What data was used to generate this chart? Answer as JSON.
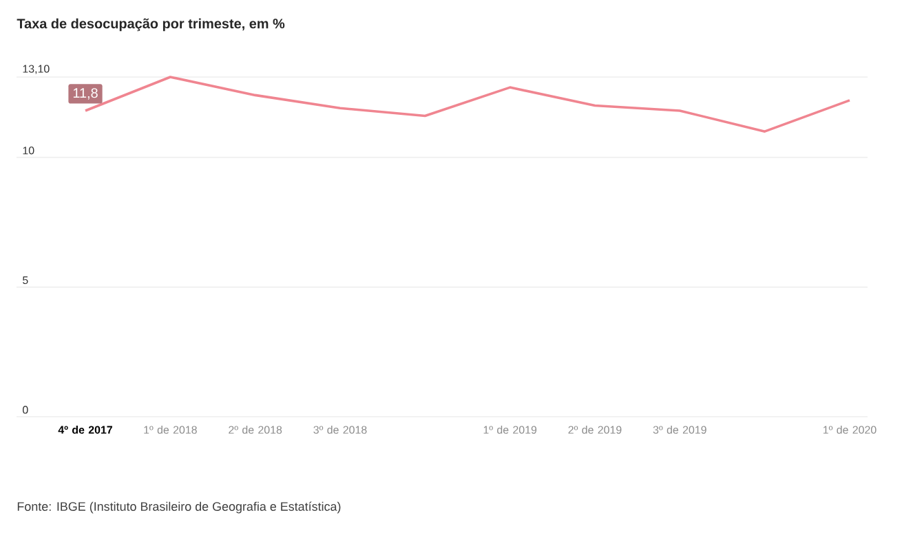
{
  "chart_data": {
    "type": "line",
    "title": "Taxa de desocupação por trimeste, em %",
    "categories": [
      "4º de 2017",
      "1º de 2018",
      "2º de 2018",
      "3º de 2018",
      null,
      "1º de 2019",
      "2º de 2019",
      "3º de 2019",
      null,
      "1º de 2020"
    ],
    "series": [
      {
        "color": "#f08590",
        "values": [
          11.8,
          13.1,
          12.4,
          11.9,
          11.6,
          12.7,
          12.0,
          11.8,
          11.0,
          12.2
        ],
        "value_labels": [
          "11,8",
          null,
          null,
          null,
          null,
          null,
          null,
          null,
          null,
          null
        ]
      }
    ],
    "ylim": [
      0,
      13.1
    ],
    "yticks": [
      0,
      5,
      10,
      {
        "value": 13.1,
        "label": "13,10"
      }
    ],
    "grid": "y",
    "annotations": [
      "Fonte: IBGE (Instituto Brasileiro de Geografia e Estatística)"
    ]
  }
}
